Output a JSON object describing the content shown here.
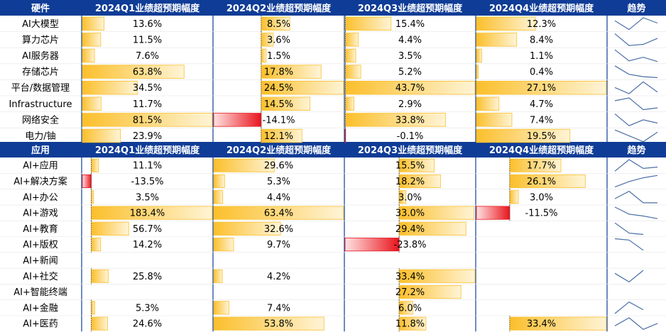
{
  "colors": {
    "header_bg": "#0f3c96",
    "header_text": "#ffffff",
    "grid": "#bdbdbd",
    "positive_bar": "#fbbf2b",
    "positive_bar_light": "#fff4d6",
    "negative_bar": "#e8141c",
    "negative_bar_light": "#ffe2e2",
    "sparkline": "#4a6fa5"
  },
  "chart_data": [
    {
      "type": "table",
      "section": "hardware",
      "row_header": "硬件",
      "columns": [
        "2024Q1业绩超预期幅度",
        "2024Q2业绩超预期幅度",
        "2024Q3业绩超预期幅度",
        "2024Q4业绩超预期幅度"
      ],
      "trend_header": "趋势",
      "rows": [
        {
          "name": "AI大模型",
          "values": [
            13.6,
            8.5,
            15.4,
            12.3
          ],
          "labels": [
            "13.6%",
            "8.5%",
            "15.4%",
            "12.3%"
          ]
        },
        {
          "name": "算力芯片",
          "values": [
            11.5,
            3.6,
            4.4,
            8.4
          ],
          "labels": [
            "11.5%",
            "3.6%",
            "4.4%",
            "8.4%"
          ]
        },
        {
          "name": "AI服务器",
          "values": [
            7.6,
            1.5,
            3.5,
            1.1
          ],
          "labels": [
            "7.6%",
            "1.5%",
            "3.5%",
            "1.1%"
          ]
        },
        {
          "name": "存储芯片",
          "values": [
            63.8,
            17.8,
            5.2,
            0.4
          ],
          "labels": [
            "63.8%",
            "17.8%",
            "5.2%",
            "0.4%"
          ]
        },
        {
          "name": "平台/数据管理",
          "values": [
            34.5,
            24.5,
            43.7,
            27.1
          ],
          "labels": [
            "34.5%",
            "24.5%",
            "43.7%",
            "27.1%"
          ]
        },
        {
          "name": "Infrastructure",
          "values": [
            11.7,
            14.5,
            2.9,
            4.7
          ],
          "labels": [
            "11.7%",
            "14.5%",
            "2.9%",
            "4.7%"
          ]
        },
        {
          "name": "网络安全",
          "values": [
            81.5,
            -14.1,
            33.8,
            7.4
          ],
          "labels": [
            "81.5%",
            "-14.1%",
            "33.8%",
            "7.4%"
          ]
        },
        {
          "name": "电力/铀",
          "values": [
            23.9,
            12.1,
            -0.1,
            19.5
          ],
          "labels": [
            "23.9%",
            "12.1%",
            "-0.1%",
            "19.5%"
          ]
        }
      ]
    },
    {
      "type": "table",
      "section": "application",
      "row_header": "应用",
      "columns": [
        "2024Q1业绩超预期幅度",
        "2024Q2业绩超预期幅度",
        "2024Q3业绩超预期幅度",
        "2024Q4业绩超预期幅度"
      ],
      "trend_header": "趋势",
      "rows": [
        {
          "name": "AI+应用",
          "values": [
            11.1,
            29.6,
            15.5,
            17.7
          ],
          "labels": [
            "11.1%",
            "29.6%",
            "15.5%",
            "17.7%"
          ]
        },
        {
          "name": "AI+解决方案",
          "values": [
            -13.5,
            5.3,
            18.2,
            26.1
          ],
          "labels": [
            "-13.5%",
            "5.3%",
            "18.2%",
            "26.1%"
          ]
        },
        {
          "name": "AI+办公",
          "values": [
            3.5,
            4.4,
            3.0,
            3.0
          ],
          "labels": [
            "3.5%",
            "4.4%",
            "3.0%",
            "3.0%"
          ]
        },
        {
          "name": "AI+游戏",
          "values": [
            183.4,
            63.4,
            33.0,
            -11.5
          ],
          "labels": [
            "183.4%",
            "63.4%",
            "33.0%",
            "-11.5%"
          ]
        },
        {
          "name": "AI+教育",
          "values": [
            56.7,
            32.6,
            29.4,
            null
          ],
          "labels": [
            "56.7%",
            "32.6%",
            "29.4%",
            ""
          ]
        },
        {
          "name": "AI+版权",
          "values": [
            14.2,
            9.7,
            -23.8,
            null
          ],
          "labels": [
            "14.2%",
            "9.7%",
            "-23.8%",
            ""
          ]
        },
        {
          "name": "AI+新闻",
          "values": [
            null,
            null,
            null,
            null
          ],
          "labels": [
            "",
            "",
            "",
            ""
          ]
        },
        {
          "name": "AI+社交",
          "values": [
            25.8,
            4.2,
            33.4,
            null
          ],
          "labels": [
            "25.8%",
            "4.2%",
            "33.4%",
            ""
          ]
        },
        {
          "name": "AI+智能终端",
          "values": [
            null,
            null,
            27.2,
            null
          ],
          "labels": [
            "",
            "",
            "27.2%",
            ""
          ]
        },
        {
          "name": "AI+金融",
          "values": [
            5.3,
            7.4,
            6.0,
            null
          ],
          "labels": [
            "5.3%",
            "7.4%",
            "6.0%",
            ""
          ]
        },
        {
          "name": "AI+医药",
          "values": [
            24.6,
            53.8,
            11.8,
            33.4
          ],
          "labels": [
            "24.6%",
            "53.8%",
            "11.8%",
            "33.4%"
          ]
        }
      ]
    }
  ]
}
